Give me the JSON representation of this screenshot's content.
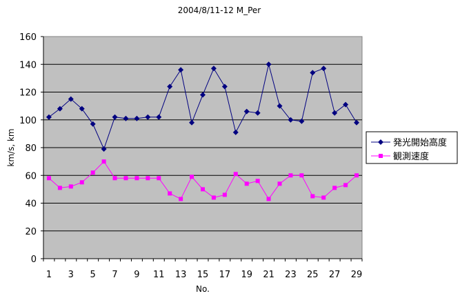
{
  "chart_data": {
    "type": "line",
    "title": "2004/8/11-12 M_Per",
    "xlabel": "No.",
    "ylabel": "km/s, km",
    "ylim": [
      0,
      160
    ],
    "yticks": [
      0,
      20,
      40,
      60,
      80,
      100,
      120,
      140,
      160
    ],
    "x": [
      1,
      2,
      3,
      4,
      5,
      6,
      7,
      8,
      9,
      10,
      11,
      12,
      13,
      14,
      15,
      16,
      17,
      18,
      19,
      20,
      21,
      22,
      23,
      24,
      25,
      26,
      27,
      28,
      29
    ],
    "xtick_labels": [
      "1",
      "3",
      "5",
      "7",
      "9",
      "11",
      "13",
      "15",
      "17",
      "19",
      "21",
      "23",
      "25",
      "27",
      "29"
    ],
    "grid": true,
    "legend_position": "right",
    "colors": {
      "plot_bg": "#C0C0C0",
      "series1": "#000080",
      "series2": "#FF00FF"
    },
    "series": [
      {
        "name": "発光開始高度",
        "marker": "diamond",
        "values": [
          102,
          108,
          115,
          108,
          97,
          79,
          102,
          101,
          101,
          102,
          102,
          124,
          136,
          98,
          118,
          137,
          124,
          91,
          106,
          105,
          140,
          110,
          100,
          99,
          134,
          137,
          105,
          111,
          98
        ]
      },
      {
        "name": "観測速度",
        "marker": "square",
        "values": [
          58,
          51,
          52,
          55,
          62,
          70,
          58,
          58,
          58,
          58,
          58,
          47,
          43,
          59,
          50,
          44,
          46,
          61,
          54,
          56,
          43,
          54,
          60,
          60,
          45,
          44,
          51,
          53,
          60
        ]
      }
    ]
  }
}
